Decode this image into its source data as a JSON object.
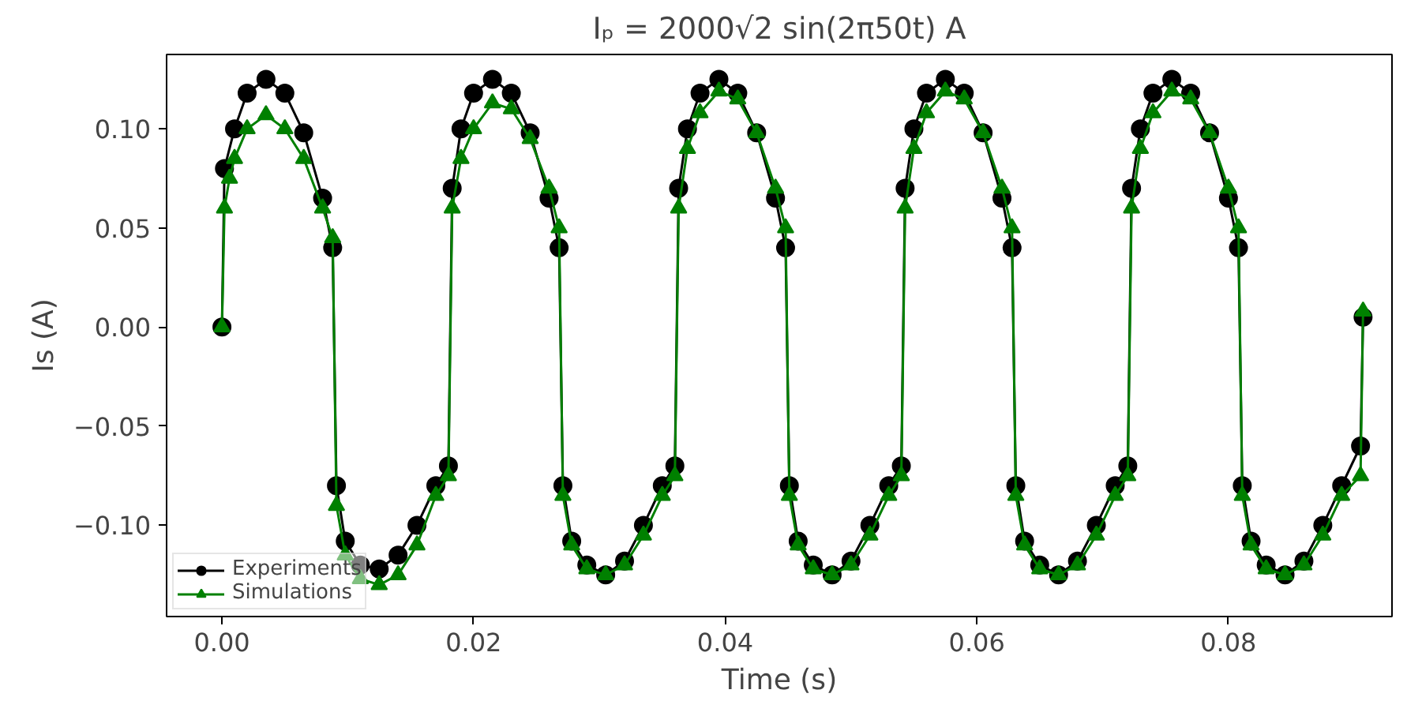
{
  "chart_data": {
    "type": "line",
    "title": "Iₚ = 2000√2 sin(2π50t) A",
    "xlabel": "Time (s)",
    "ylabel": "Is (A)",
    "xlim": [
      -0.0044,
      0.093
    ],
    "ylim": [
      -0.146,
      0.1375
    ],
    "xticks": [
      {
        "value": 0,
        "label": "0.00"
      },
      {
        "value": 0.02,
        "label": "0.02"
      },
      {
        "value": 0.04,
        "label": "0.04"
      },
      {
        "value": 0.06,
        "label": "0.06"
      },
      {
        "value": 0.08,
        "label": "0.08"
      }
    ],
    "yticks": [
      {
        "value": -0.1,
        "label": "−0.10"
      },
      {
        "value": -0.05,
        "label": "−0.05"
      },
      {
        "value": 0,
        "label": "0.00"
      },
      {
        "value": 0.05,
        "label": "0.05"
      },
      {
        "value": 0.1,
        "label": "0.10"
      }
    ],
    "grid": false,
    "legend": "bottom left",
    "series": [
      {
        "name": "Experiments",
        "color": "#000000",
        "marker": "circle",
        "x": [
          0,
          0.0002,
          0.001,
          0.002,
          0.0035,
          0.005,
          0.0065,
          0.008,
          0.0088,
          0.0091,
          0.0098,
          0.011,
          0.0125,
          0.014,
          0.0155,
          0.017,
          0.018,
          0.0183,
          0.019,
          0.02,
          0.0215,
          0.023,
          0.0245,
          0.026,
          0.0268,
          0.0271,
          0.0278,
          0.029,
          0.0305,
          0.032,
          0.0335,
          0.035,
          0.036,
          0.0363,
          0.037,
          0.038,
          0.0395,
          0.041,
          0.0425,
          0.044,
          0.0448,
          0.0451,
          0.0458,
          0.047,
          0.0485,
          0.05,
          0.0515,
          0.053,
          0.054,
          0.0543,
          0.055,
          0.056,
          0.0575,
          0.059,
          0.0605,
          0.062,
          0.0628,
          0.0631,
          0.0638,
          0.065,
          0.0665,
          0.068,
          0.0695,
          0.071,
          0.072,
          0.0723,
          0.073,
          0.074,
          0.0755,
          0.077,
          0.0785,
          0.08,
          0.0808,
          0.0811,
          0.0818,
          0.083,
          0.0845,
          0.086,
          0.0875,
          0.089,
          0.0905,
          0.0907
        ],
        "values": [
          0,
          0.08,
          0.1,
          0.118,
          0.125,
          0.118,
          0.098,
          0.065,
          0.04,
          -0.08,
          -0.108,
          -0.12,
          -0.122,
          -0.115,
          -0.1,
          -0.08,
          -0.07,
          0.07,
          0.1,
          0.118,
          0.125,
          0.118,
          0.098,
          0.065,
          0.04,
          -0.08,
          -0.108,
          -0.12,
          -0.125,
          -0.118,
          -0.1,
          -0.08,
          -0.07,
          0.07,
          0.1,
          0.118,
          0.125,
          0.118,
          0.098,
          0.065,
          0.04,
          -0.08,
          -0.108,
          -0.12,
          -0.125,
          -0.118,
          -0.1,
          -0.08,
          -0.07,
          0.07,
          0.1,
          0.118,
          0.125,
          0.118,
          0.098,
          0.065,
          0.04,
          -0.08,
          -0.108,
          -0.12,
          -0.125,
          -0.118,
          -0.1,
          -0.08,
          -0.07,
          0.07,
          0.1,
          0.118,
          0.125,
          0.118,
          0.098,
          0.065,
          0.04,
          -0.08,
          -0.108,
          -0.12,
          -0.125,
          -0.118,
          -0.1,
          -0.08,
          -0.06,
          0.005
        ]
      },
      {
        "name": "Simulations",
        "color": "#008000",
        "marker": "triangle",
        "x": [
          0,
          0.0002,
          0.0006,
          0.001,
          0.002,
          0.0035,
          0.005,
          0.0065,
          0.008,
          0.0088,
          0.0091,
          0.0098,
          0.011,
          0.0125,
          0.014,
          0.0155,
          0.017,
          0.018,
          0.0183,
          0.019,
          0.02,
          0.0215,
          0.023,
          0.0245,
          0.026,
          0.0268,
          0.0271,
          0.0278,
          0.029,
          0.0305,
          0.032,
          0.0335,
          0.035,
          0.036,
          0.0363,
          0.037,
          0.038,
          0.0395,
          0.041,
          0.0425,
          0.044,
          0.0448,
          0.0451,
          0.0458,
          0.047,
          0.0485,
          0.05,
          0.0515,
          0.053,
          0.054,
          0.0543,
          0.055,
          0.056,
          0.0575,
          0.059,
          0.0605,
          0.062,
          0.0628,
          0.0631,
          0.0638,
          0.065,
          0.0665,
          0.068,
          0.0695,
          0.071,
          0.072,
          0.0723,
          0.073,
          0.074,
          0.0755,
          0.077,
          0.0785,
          0.08,
          0.0808,
          0.0811,
          0.0818,
          0.083,
          0.0845,
          0.086,
          0.0875,
          0.089,
          0.0905,
          0.0907
        ],
        "values": [
          0,
          0.06,
          0.075,
          0.085,
          0.1,
          0.107,
          0.1,
          0.085,
          0.06,
          0.045,
          -0.09,
          -0.115,
          -0.127,
          -0.13,
          -0.125,
          -0.11,
          -0.085,
          -0.075,
          0.06,
          0.085,
          0.1,
          0.113,
          0.11,
          0.095,
          0.07,
          0.05,
          -0.085,
          -0.11,
          -0.122,
          -0.125,
          -0.12,
          -0.105,
          -0.085,
          -0.075,
          0.06,
          0.09,
          0.108,
          0.119,
          0.115,
          0.098,
          0.07,
          0.05,
          -0.085,
          -0.11,
          -0.122,
          -0.125,
          -0.12,
          -0.105,
          -0.085,
          -0.075,
          0.06,
          0.09,
          0.108,
          0.119,
          0.115,
          0.098,
          0.07,
          0.05,
          -0.085,
          -0.11,
          -0.122,
          -0.125,
          -0.12,
          -0.105,
          -0.085,
          -0.075,
          0.06,
          0.09,
          0.108,
          0.119,
          0.115,
          0.098,
          0.07,
          0.05,
          -0.085,
          -0.11,
          -0.122,
          -0.125,
          -0.12,
          -0.105,
          -0.085,
          -0.075,
          0.008
        ]
      }
    ]
  }
}
